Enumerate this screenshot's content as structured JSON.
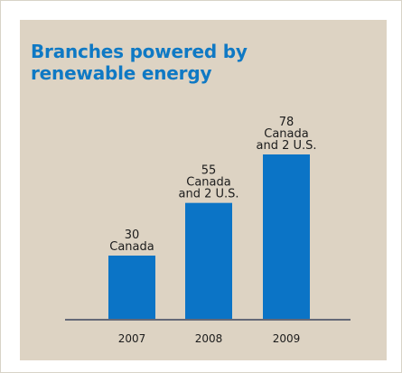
{
  "chart_data": {
    "type": "bar",
    "title": "Branches powered by renewable energy",
    "categories": [
      "2007",
      "2008",
      "2009"
    ],
    "values": [
      30,
      55,
      78
    ],
    "data_labels": [
      [
        "30",
        "Canada"
      ],
      [
        "55",
        "Canada",
        "and 2 U.S."
      ],
      [
        "78",
        "Canada",
        "and 2 U.S."
      ]
    ],
    "xlabel": "",
    "ylabel": "",
    "ylim": [
      0,
      78
    ],
    "grid": false,
    "colors": {
      "bar": "#0b74c6",
      "title": "#0f79c4",
      "background": "#ddd3c3"
    }
  }
}
